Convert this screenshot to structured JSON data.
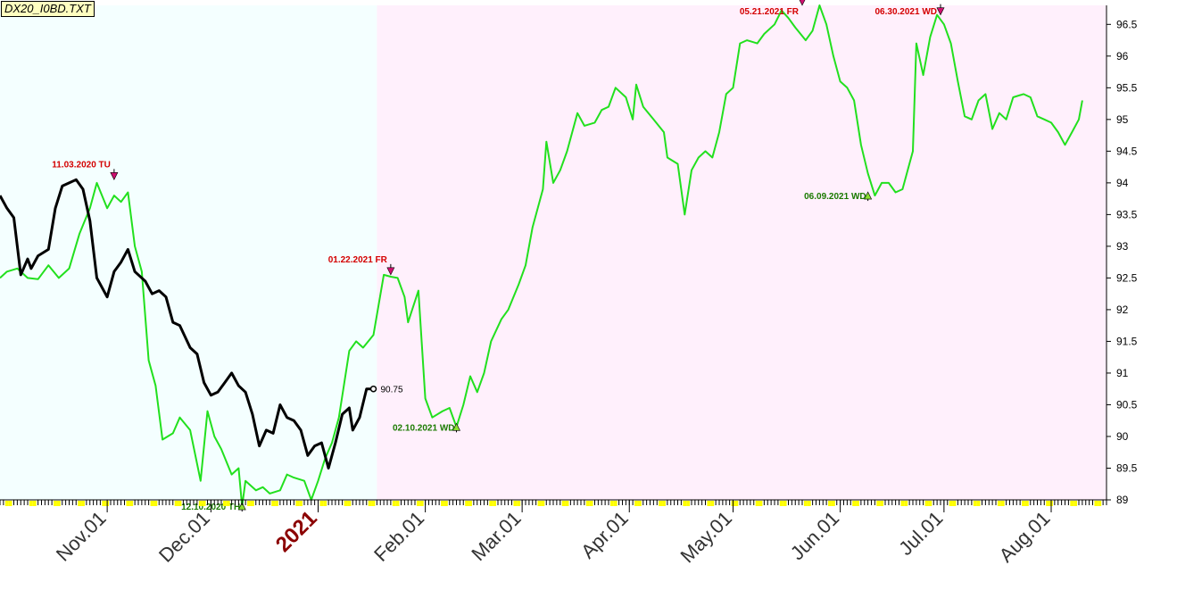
{
  "file_label": "DX20_I0BD.TXT",
  "colors": {
    "background": "#ffffff",
    "history_region": "#f4ffff",
    "projection_region": "#fff0fc",
    "green_series": "#22e01e",
    "black_series": "#000000",
    "high_marker": "#d01070",
    "low_marker": "#8ae030",
    "high_text": "#d40000",
    "low_text": "#1a7a00",
    "year_text": "#8b0000",
    "tick_yellow": "#ffff00"
  },
  "chart_data": {
    "type": "line",
    "xaxis": {
      "type": "date",
      "range": [
        "2020-10-01",
        "2021-08-17"
      ],
      "tick_labels": [
        {
          "date": "2020-11-01",
          "label": "Nov.01"
        },
        {
          "date": "2020-12-01",
          "label": "Dec.01"
        },
        {
          "date": "2021-01-01",
          "label": "2021",
          "year": true
        },
        {
          "date": "2021-02-01",
          "label": "Feb.01"
        },
        {
          "date": "2021-03-01",
          "label": "Mar.01"
        },
        {
          "date": "2021-04-01",
          "label": "Apr.01"
        },
        {
          "date": "2021-05-01",
          "label": "May.01"
        },
        {
          "date": "2021-06-01",
          "label": "Jun.01"
        },
        {
          "date": "2021-07-01",
          "label": "Jul.01"
        },
        {
          "date": "2021-08-01",
          "label": "Aug.01"
        }
      ]
    },
    "yaxis": {
      "range": [
        89,
        96.8
      ],
      "ticks": [
        "89",
        "89.5",
        "90",
        "90.5",
        "91",
        "91.5",
        "92",
        "92.5",
        "93",
        "93.5",
        "94",
        "94.5",
        "95",
        "95.5",
        "96",
        "96.5"
      ]
    },
    "regions": [
      {
        "from": "2020-10-01",
        "to": "2021-01-18",
        "color": "history_region"
      },
      {
        "from": "2021-01-18",
        "to": "2021-08-17",
        "color": "projection_region"
      }
    ],
    "series": [
      {
        "color": "green_series",
        "points": [
          [
            "2020-10-01",
            92.5
          ],
          [
            "2020-10-03",
            92.6
          ],
          [
            "2020-10-06",
            92.65
          ],
          [
            "2020-10-09",
            92.5
          ],
          [
            "2020-10-12",
            92.48
          ],
          [
            "2020-10-15",
            92.7
          ],
          [
            "2020-10-18",
            92.5
          ],
          [
            "2020-10-21",
            92.65
          ],
          [
            "2020-10-24",
            93.2
          ],
          [
            "2020-10-27",
            93.6
          ],
          [
            "2020-10-29",
            94.0
          ],
          [
            "2020-11-01",
            93.6
          ],
          [
            "2020-11-03",
            93.8
          ],
          [
            "2020-11-05",
            93.7
          ],
          [
            "2020-11-07",
            93.85
          ],
          [
            "2020-11-09",
            93.0
          ],
          [
            "2020-11-11",
            92.6
          ],
          [
            "2020-11-13",
            91.2
          ],
          [
            "2020-11-15",
            90.8
          ],
          [
            "2020-11-17",
            89.95
          ],
          [
            "2020-11-20",
            90.05
          ],
          [
            "2020-11-22",
            90.3
          ],
          [
            "2020-11-25",
            90.1
          ],
          [
            "2020-11-28",
            89.3
          ],
          [
            "2020-11-30",
            90.4
          ],
          [
            "2020-12-02",
            90.0
          ],
          [
            "2020-12-04",
            89.8
          ],
          [
            "2020-12-07",
            89.4
          ],
          [
            "2020-12-09",
            89.5
          ],
          [
            "2020-12-10",
            88.9
          ],
          [
            "2020-12-11",
            89.3
          ],
          [
            "2020-12-14",
            89.15
          ],
          [
            "2020-12-16",
            89.2
          ],
          [
            "2020-12-18",
            89.1
          ],
          [
            "2020-12-21",
            89.15
          ],
          [
            "2020-12-23",
            89.4
          ],
          [
            "2020-12-25",
            89.35
          ],
          [
            "2020-12-28",
            89.3
          ],
          [
            "2020-12-30",
            89.0
          ],
          [
            "2021-01-01",
            89.3
          ],
          [
            "2021-01-03",
            89.65
          ],
          [
            "2021-01-05",
            89.9
          ],
          [
            "2021-01-07",
            90.3
          ],
          [
            "2021-01-10",
            91.35
          ],
          [
            "2021-01-12",
            91.5
          ],
          [
            "2021-01-14",
            91.4
          ],
          [
            "2021-01-17",
            91.6
          ],
          [
            "2021-01-20",
            92.55
          ],
          [
            "2021-01-22",
            92.52
          ],
          [
            "2021-01-24",
            92.5
          ],
          [
            "2021-01-26",
            92.2
          ],
          [
            "2021-01-27",
            91.8
          ],
          [
            "2021-01-30",
            92.3
          ],
          [
            "2021-02-01",
            90.6
          ],
          [
            "2021-02-03",
            90.3
          ],
          [
            "2021-02-06",
            90.4
          ],
          [
            "2021-02-08",
            90.45
          ],
          [
            "2021-02-10",
            90.15
          ],
          [
            "2021-02-12",
            90.5
          ],
          [
            "2021-02-14",
            90.95
          ],
          [
            "2021-02-16",
            90.7
          ],
          [
            "2021-02-18",
            91.0
          ],
          [
            "2021-02-20",
            91.5
          ],
          [
            "2021-02-23",
            91.85
          ],
          [
            "2021-02-25",
            92.0
          ],
          [
            "2021-02-28",
            92.4
          ],
          [
            "2021-03-02",
            92.7
          ],
          [
            "2021-03-04",
            93.3
          ],
          [
            "2021-03-07",
            93.9
          ],
          [
            "2021-03-08",
            94.65
          ],
          [
            "2021-03-10",
            94.0
          ],
          [
            "2021-03-12",
            94.2
          ],
          [
            "2021-03-14",
            94.5
          ],
          [
            "2021-03-17",
            95.1
          ],
          [
            "2021-03-19",
            94.9
          ],
          [
            "2021-03-22",
            94.95
          ],
          [
            "2021-03-24",
            95.15
          ],
          [
            "2021-03-26",
            95.2
          ],
          [
            "2021-03-28",
            95.5
          ],
          [
            "2021-03-31",
            95.35
          ],
          [
            "2021-04-02",
            95.0
          ],
          [
            "2021-04-03",
            95.55
          ],
          [
            "2021-04-05",
            95.2
          ],
          [
            "2021-04-08",
            95.0
          ],
          [
            "2021-04-11",
            94.8
          ],
          [
            "2021-04-12",
            94.4
          ],
          [
            "2021-04-15",
            94.3
          ],
          [
            "2021-04-17",
            93.5
          ],
          [
            "2021-04-19",
            94.2
          ],
          [
            "2021-04-21",
            94.4
          ],
          [
            "2021-04-23",
            94.5
          ],
          [
            "2021-04-25",
            94.4
          ],
          [
            "2021-04-27",
            94.8
          ],
          [
            "2021-04-29",
            95.4
          ],
          [
            "2021-05-01",
            95.5
          ],
          [
            "2021-05-03",
            96.2
          ],
          [
            "2021-05-05",
            96.25
          ],
          [
            "2021-05-08",
            96.2
          ],
          [
            "2021-05-10",
            96.35
          ],
          [
            "2021-05-13",
            96.5
          ],
          [
            "2021-05-15",
            96.72
          ],
          [
            "2021-05-17",
            96.6
          ],
          [
            "2021-05-19",
            96.45
          ],
          [
            "2021-05-22",
            96.25
          ],
          [
            "2021-05-24",
            96.4
          ],
          [
            "2021-05-26",
            96.8
          ],
          [
            "2021-05-28",
            96.5
          ],
          [
            "2021-05-30",
            96.0
          ],
          [
            "2021-06-01",
            95.6
          ],
          [
            "2021-06-03",
            95.5
          ],
          [
            "2021-06-05",
            95.3
          ],
          [
            "2021-06-07",
            94.6
          ],
          [
            "2021-06-09",
            94.15
          ],
          [
            "2021-06-11",
            93.8
          ],
          [
            "2021-06-13",
            94.0
          ],
          [
            "2021-06-15",
            94.0
          ],
          [
            "2021-06-17",
            93.85
          ],
          [
            "2021-06-19",
            93.9
          ],
          [
            "2021-06-22",
            94.5
          ],
          [
            "2021-06-23",
            96.2
          ],
          [
            "2021-06-25",
            95.7
          ],
          [
            "2021-06-27",
            96.3
          ],
          [
            "2021-06-29",
            96.65
          ],
          [
            "2021-07-01",
            96.5
          ],
          [
            "2021-07-03",
            96.2
          ],
          [
            "2021-07-05",
            95.6
          ],
          [
            "2021-07-07",
            95.05
          ],
          [
            "2021-07-09",
            95.0
          ],
          [
            "2021-07-11",
            95.3
          ],
          [
            "2021-07-13",
            95.4
          ],
          [
            "2021-07-15",
            94.85
          ],
          [
            "2021-07-17",
            95.1
          ],
          [
            "2021-07-19",
            95.0
          ],
          [
            "2021-07-21",
            95.35
          ],
          [
            "2021-07-24",
            95.4
          ],
          [
            "2021-07-26",
            95.35
          ],
          [
            "2021-07-28",
            95.05
          ],
          [
            "2021-07-30",
            95.0
          ],
          [
            "2021-08-01",
            94.95
          ],
          [
            "2021-08-03",
            94.8
          ],
          [
            "2021-08-05",
            94.6
          ],
          [
            "2021-08-07",
            94.8
          ],
          [
            "2021-08-09",
            95.0
          ],
          [
            "2021-08-10",
            95.3
          ]
        ]
      },
      {
        "color": "black_series",
        "points": [
          [
            "2020-10-01",
            93.8
          ],
          [
            "2020-10-03",
            93.6
          ],
          [
            "2020-10-05",
            93.45
          ],
          [
            "2020-10-07",
            92.55
          ],
          [
            "2020-10-09",
            92.8
          ],
          [
            "2020-10-10",
            92.65
          ],
          [
            "2020-10-12",
            92.85
          ],
          [
            "2020-10-15",
            92.95
          ],
          [
            "2020-10-17",
            93.6
          ],
          [
            "2020-10-19",
            93.95
          ],
          [
            "2020-10-21",
            94.0
          ],
          [
            "2020-10-23",
            94.05
          ],
          [
            "2020-10-25",
            93.9
          ],
          [
            "2020-10-27",
            93.4
          ],
          [
            "2020-10-29",
            92.5
          ],
          [
            "2020-11-01",
            92.2
          ],
          [
            "2020-11-03",
            92.6
          ],
          [
            "2020-11-05",
            92.75
          ],
          [
            "2020-11-07",
            92.95
          ],
          [
            "2020-11-09",
            92.6
          ],
          [
            "2020-11-12",
            92.45
          ],
          [
            "2020-11-14",
            92.25
          ],
          [
            "2020-11-16",
            92.3
          ],
          [
            "2020-11-18",
            92.2
          ],
          [
            "2020-11-20",
            91.8
          ],
          [
            "2020-11-22",
            91.75
          ],
          [
            "2020-11-25",
            91.4
          ],
          [
            "2020-11-27",
            91.3
          ],
          [
            "2020-11-29",
            90.85
          ],
          [
            "2020-12-01",
            90.65
          ],
          [
            "2020-12-03",
            90.7
          ],
          [
            "2020-12-05",
            90.85
          ],
          [
            "2020-12-07",
            91.0
          ],
          [
            "2020-12-09",
            90.8
          ],
          [
            "2020-12-11",
            90.7
          ],
          [
            "2020-12-13",
            90.35
          ],
          [
            "2020-12-15",
            89.85
          ],
          [
            "2020-12-17",
            90.1
          ],
          [
            "2020-12-19",
            90.05
          ],
          [
            "2020-12-21",
            90.5
          ],
          [
            "2020-12-23",
            90.3
          ],
          [
            "2020-12-25",
            90.25
          ],
          [
            "2020-12-27",
            90.1
          ],
          [
            "2020-12-29",
            89.7
          ],
          [
            "2020-12-31",
            89.85
          ],
          [
            "2021-01-02",
            89.9
          ],
          [
            "2021-01-04",
            89.5
          ],
          [
            "2021-01-06",
            89.9
          ],
          [
            "2021-01-08",
            90.35
          ],
          [
            "2021-01-10",
            90.45
          ],
          [
            "2021-01-11",
            90.1
          ],
          [
            "2021-01-13",
            90.3
          ],
          [
            "2021-01-15",
            90.75
          ],
          [
            "2021-01-17",
            90.75
          ]
        ]
      }
    ],
    "annotations": [
      {
        "date": "2020-11-03",
        "value": 94.05,
        "label": "11.03.2020 TU",
        "kind": "high"
      },
      {
        "date": "2020-12-10",
        "value": 88.9,
        "label": "12.10.2020 TH",
        "kind": "low"
      },
      {
        "date": "2021-01-22",
        "value": 92.55,
        "label": "01.22.2021 FR",
        "kind": "high"
      },
      {
        "date": "2021-02-10",
        "value": 90.15,
        "label": "02.10.2021 WD",
        "kind": "low"
      },
      {
        "date": "2021-05-21",
        "value": 96.8,
        "label": "05.21.2021 FR",
        "kind": "high"
      },
      {
        "date": "2021-06-09",
        "value": 93.8,
        "label": "06.09.2021 WD",
        "kind": "low"
      },
      {
        "date": "2021-06-30",
        "value": 96.65,
        "label": "06.30.2021 WD",
        "kind": "high"
      }
    ],
    "last_value": {
      "date": "2021-01-17",
      "value": 90.75,
      "label": "90.75"
    }
  }
}
